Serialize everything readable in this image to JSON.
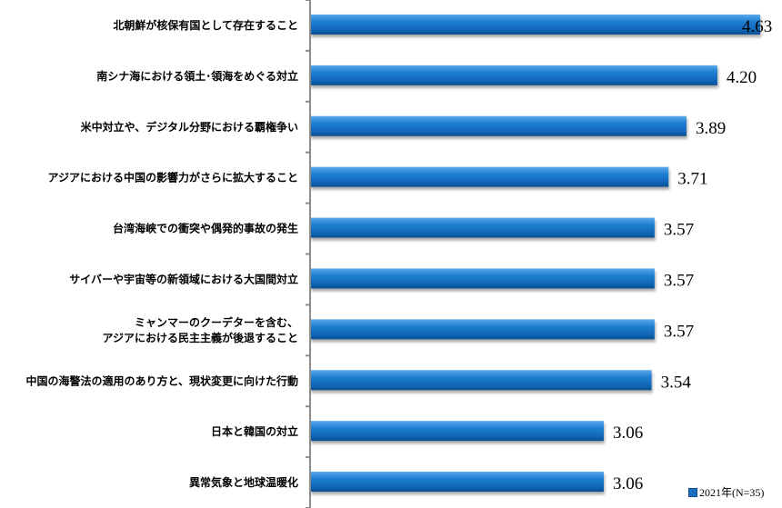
{
  "chart_data": {
    "type": "bar",
    "orientation": "horizontal",
    "categories": [
      [
        "北朝鮮が核保有国として存在すること"
      ],
      [
        "南シナ海における領土･領海をめぐる対立"
      ],
      [
        "米中対立や、デジタル分野における覇権争い"
      ],
      [
        "アジアにおける中国の影響力がさらに拡大すること"
      ],
      [
        "台湾海峡での衝突や偶発的事故の発生"
      ],
      [
        "サイバーや宇宙等の新領域における大国間対立"
      ],
      [
        "ミャンマーのクーデターを含む、",
        "アジアにおける民主主義が後退すること"
      ],
      [
        "中国の海警法の適用のあり方と、現状変更に向けた行動"
      ],
      [
        "日本と韓国の対立"
      ],
      [
        "異常気象と地球温暖化"
      ]
    ],
    "series": [
      {
        "name": "2021年(N=35)",
        "values": [
          4.63,
          4.2,
          3.89,
          3.71,
          3.57,
          3.57,
          3.57,
          3.54,
          3.06,
          3.06
        ],
        "labels": [
          "4.63",
          "4.20",
          "3.89",
          "3.71",
          "3.57",
          "3.57",
          "3.57",
          "3.54",
          "3.06",
          "3.06"
        ],
        "color": "#1a6fc0"
      }
    ],
    "legend_placement": "bottom-right",
    "grid": false
  }
}
